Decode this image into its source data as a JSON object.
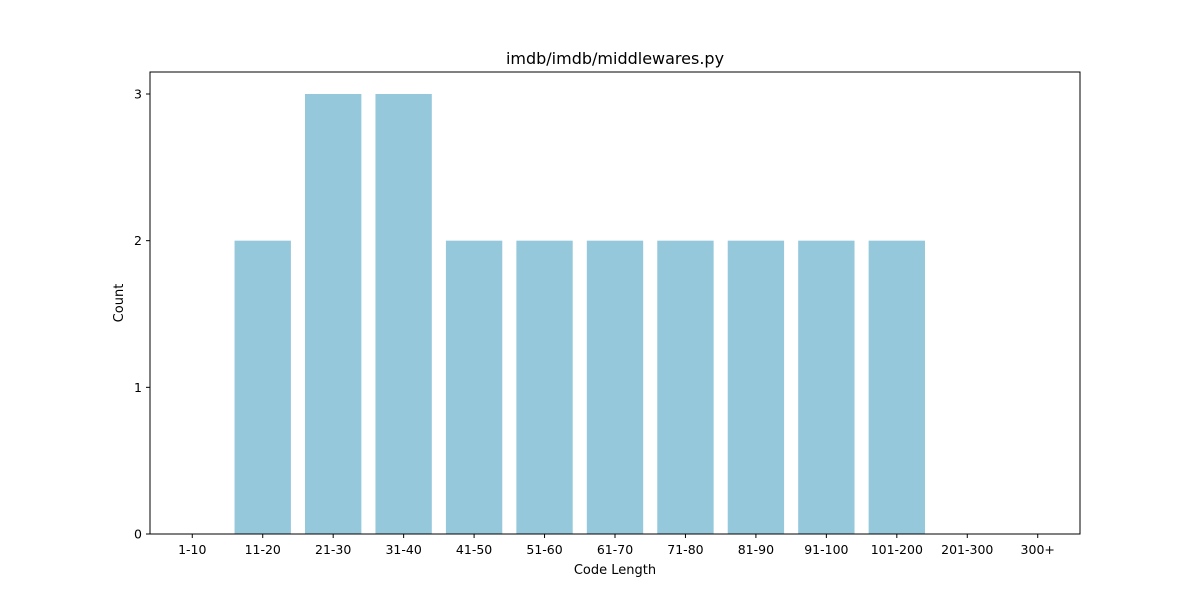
{
  "chart_data": {
    "type": "bar",
    "title": "imdb/imdb/middlewares.py",
    "xlabel": "Code Length",
    "ylabel": "Count",
    "categories": [
      "1-10",
      "11-20",
      "21-30",
      "31-40",
      "41-50",
      "51-60",
      "61-70",
      "71-80",
      "81-90",
      "91-100",
      "101-200",
      "201-300",
      "300+"
    ],
    "values": [
      0,
      2,
      3,
      3,
      2,
      2,
      2,
      2,
      2,
      2,
      2,
      0,
      0
    ],
    "ylim": [
      0,
      3.15
    ],
    "yticks": [
      "0",
      "1",
      "2",
      "3"
    ],
    "grid": false,
    "bar_color": "#96c8dc"
  }
}
